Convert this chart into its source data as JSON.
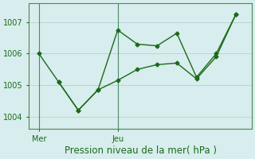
{
  "title": "Pression niveau de la mer( hPa )",
  "background_color": "#d8eded",
  "grid_color": "#b8d8d8",
  "line_color": "#1a6b1a",
  "spine_color": "#4a8a4a",
  "axvline_color": "#4a8a6a",
  "line1_x": [
    0,
    1,
    2,
    3,
    4,
    5,
    6,
    7,
    8,
    9,
    10
  ],
  "line1_y": [
    1006.0,
    1005.1,
    1004.2,
    1004.85,
    1006.75,
    1006.3,
    1006.25,
    1006.65,
    1005.25,
    1006.0,
    1007.25
  ],
  "line2_x": [
    1,
    2,
    3,
    4,
    5,
    6,
    7,
    8,
    9,
    10
  ],
  "line2_y": [
    1005.1,
    1004.2,
    1004.85,
    1005.15,
    1005.5,
    1005.65,
    1005.7,
    1005.2,
    1005.9,
    1007.25
  ],
  "xtick_positions": [
    0,
    4
  ],
  "xtick_labels": [
    "Mer",
    "Jeu"
  ],
  "vline_positions": [
    0,
    4
  ],
  "ylim": [
    1003.6,
    1007.6
  ],
  "xlim": [
    -0.5,
    10.8
  ],
  "ytick_values": [
    1004,
    1005,
    1006,
    1007
  ],
  "tick_fontsize": 7,
  "title_fontsize": 8.5,
  "marker": "D",
  "markersize": 2.5,
  "linewidth": 1.0
}
